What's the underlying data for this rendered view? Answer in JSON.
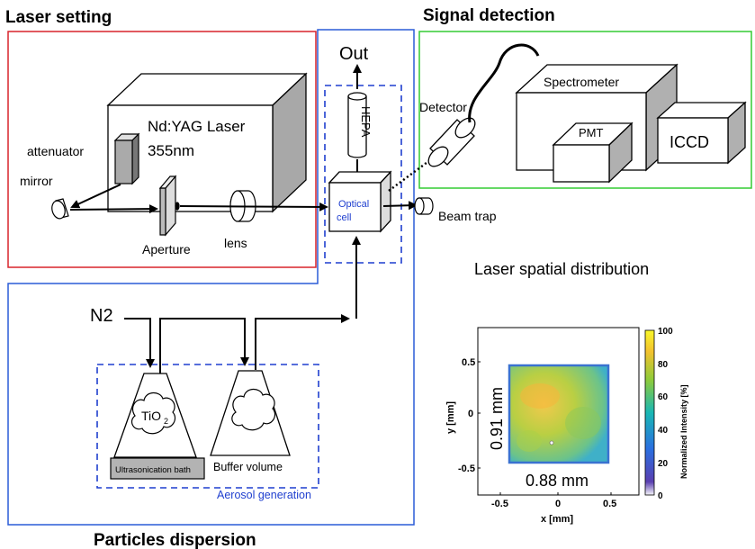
{
  "sections": {
    "laser_setting": "Laser setting",
    "signal_detection": "Signal detection",
    "particles_dispersion": "Particles dispersion",
    "aerosol_generation": "Aerosol generation"
  },
  "components": {
    "laser_name": "Nd:YAG Laser",
    "laser_wavelength": "355nm",
    "attenuator": "attenuator",
    "mirror": "mirror",
    "aperture": "Aperture",
    "lens": "lens",
    "out": "Out",
    "hepa": "HEPA",
    "optical_cell_line1": "Optical",
    "optical_cell_line2": "cell",
    "beam_trap": "Beam trap",
    "detector": "Detector",
    "spectrometer": "Spectrometer",
    "pmt": "PMT",
    "iccd": "ICCD",
    "n2": "N2",
    "tio2_main": "TiO",
    "tio2_sub": "2",
    "ultrasonication_bath": "Ultrasonication bath",
    "buffer_volume": "Buffer volume"
  },
  "colors": {
    "laser_box": "#d9242b",
    "particles_box": "#2a5bd7",
    "signal_box": "#33cc33",
    "dashed_blue": "#1f3fcf"
  },
  "inset": {
    "title": "Laser spatial distribution",
    "x_label": "x [mm]",
    "y_label": "y  [mm]",
    "x_ticks": [
      "-0.5",
      "0",
      "0.5"
    ],
    "y_ticks": [
      "0.5",
      "0",
      "-0.5"
    ],
    "colorbar_label": "Normalized Intensity [%]",
    "colorbar_ticks": [
      "100",
      "80",
      "60",
      "40",
      "20",
      "0"
    ],
    "width_annotation": "0.88 mm",
    "height_annotation": "0.91 mm"
  }
}
